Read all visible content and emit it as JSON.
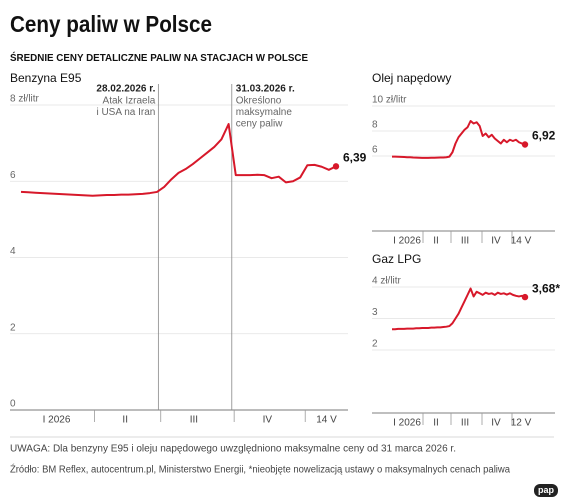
{
  "header": {
    "title": "Ceny paliw w Polsce",
    "subtitle": "ŚREDNIE CENY DETALICZNE PALIW NA STACJACH W POLSCE"
  },
  "chart_data": [
    {
      "type": "line",
      "title": "Benzyna E95",
      "xticklabels": [
        "I 2026",
        "II",
        "III",
        "IV",
        "14 V"
      ],
      "ylim": [
        0,
        8
      ],
      "yticks": [
        0,
        2,
        4,
        6,
        {
          "value": 8,
          "label": "8 zł/litr"
        }
      ],
      "grid": true,
      "series": [
        {
          "color": "#d7182a",
          "values": [
            5.72,
            5.71,
            5.7,
            5.69,
            5.68,
            5.67,
            5.66,
            5.65,
            5.64,
            5.63,
            5.62,
            5.63,
            5.64,
            5.64,
            5.65,
            5.65,
            5.66,
            5.67,
            5.69,
            5.72,
            5.85,
            6.05,
            6.22,
            6.32,
            6.45,
            6.6,
            6.75,
            6.9,
            7.1,
            7.5,
            6.16,
            6.16,
            6.16,
            6.17,
            6.16,
            6.08,
            6.12,
            5.97,
            6.0,
            6.1,
            6.42,
            6.43,
            6.38,
            6.3,
            6.39
          ],
          "value_labels": {
            "44": "6,39"
          }
        }
      ],
      "annotations": [
        {
          "label": "28.02.2026 r.",
          "text": [
            "Atak Izraela",
            "i USA na Iran"
          ]
        },
        {
          "label": "31.03.2026 r.",
          "text": [
            "Określono",
            "maksymalne",
            "ceny paliw"
          ]
        }
      ]
    },
    {
      "type": "line",
      "title": "Olej napędowy",
      "xticklabels": [
        "I 2026",
        "II",
        "III",
        "IV",
        "14 V"
      ],
      "ylim": [
        0,
        10
      ],
      "yticks": [
        6,
        8,
        {
          "value": 10,
          "label": "10 zł/litr"
        }
      ],
      "grid": true,
      "series": [
        {
          "color": "#d7182a",
          "values": [
            5.95,
            5.95,
            5.94,
            5.93,
            5.92,
            5.9,
            5.9,
            5.88,
            5.87,
            5.86,
            5.85,
            5.85,
            5.85,
            5.86,
            5.86,
            5.87,
            5.88,
            5.88,
            5.9,
            5.95,
            6.3,
            7.0,
            7.5,
            7.8,
            8.1,
            8.3,
            8.8,
            8.6,
            8.7,
            8.4,
            7.6,
            7.8,
            7.5,
            7.7,
            7.4,
            7.2,
            7.0,
            7.3,
            7.1,
            7.3,
            7.2,
            7.3,
            7.1,
            7.0,
            6.92
          ],
          "value_labels": {
            "44": "6,92"
          }
        }
      ]
    },
    {
      "type": "line",
      "title": "Gaz LPG",
      "xticklabels": [
        "I 2026",
        "II",
        "III",
        "IV",
        "12 V"
      ],
      "ylim": [
        0,
        4
      ],
      "yticks": [
        2,
        3,
        {
          "value": 4,
          "label": "4 zł/litr"
        }
      ],
      "grid": true,
      "series": [
        {
          "color": "#d7182a",
          "values": [
            2.66,
            2.66,
            2.67,
            2.67,
            2.67,
            2.68,
            2.68,
            2.68,
            2.69,
            2.69,
            2.7,
            2.7,
            2.7,
            2.71,
            2.71,
            2.72,
            2.72,
            2.73,
            2.74,
            2.76,
            2.85,
            3.0,
            3.15,
            3.35,
            3.55,
            3.75,
            3.95,
            3.7,
            3.85,
            3.8,
            3.75,
            3.82,
            3.78,
            3.8,
            3.75,
            3.82,
            3.78,
            3.8,
            3.76,
            3.8,
            3.75,
            3.72,
            3.7,
            3.72,
            3.68
          ],
          "value_labels": {
            "44": "3,68*"
          }
        }
      ]
    }
  ],
  "footer": {
    "note": "UWAGA: Dla benzyny E95 i oleju napędowego uwzględniono maksymalne ceny od 31 marca 2026 r.",
    "source": "Źródło: BM Reflex, autocentrum.pl, Ministerstwo Energii, *nieobjęte nowelizacją ustawy o maksymalnych cenach paliwa",
    "logo": "pap"
  }
}
